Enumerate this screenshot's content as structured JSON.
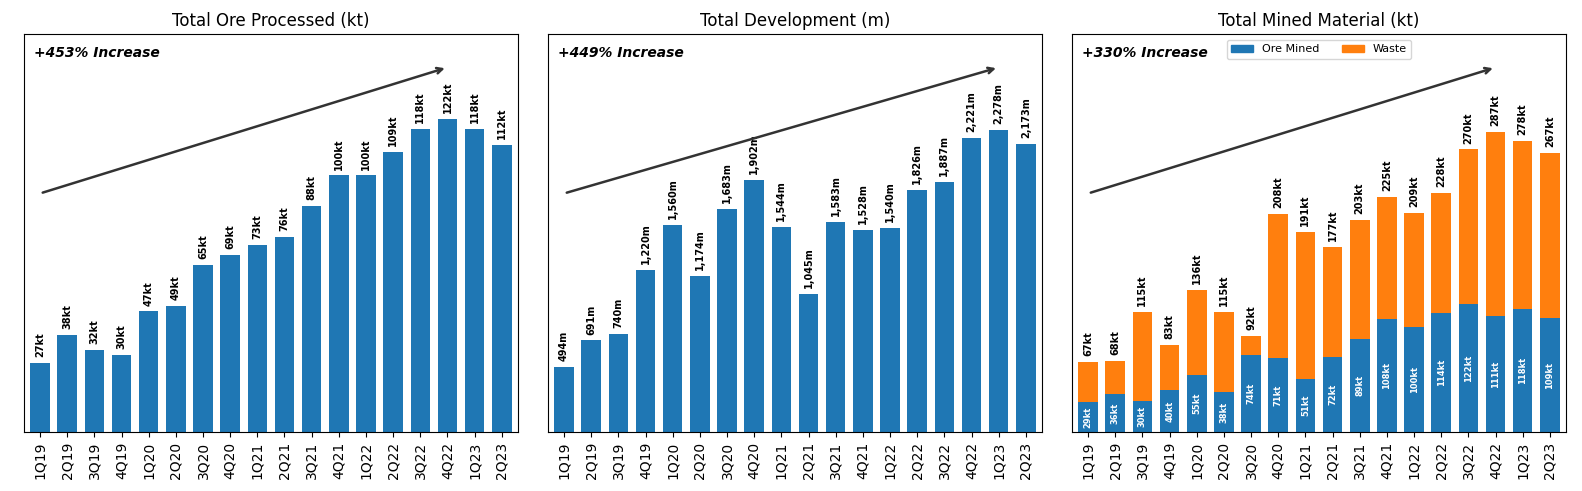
{
  "chart_data": [
    {
      "type": "bar",
      "title": "Total Ore Processed (kt)",
      "categories": [
        "1Q19",
        "2Q19",
        "3Q19",
        "4Q19",
        "1Q20",
        "2Q20",
        "3Q20",
        "4Q20",
        "1Q21",
        "2Q21",
        "3Q21",
        "4Q21",
        "1Q22",
        "2Q22",
        "3Q22",
        "4Q22",
        "1Q23",
        "2Q23"
      ],
      "values": [
        27,
        38,
        32,
        30,
        47,
        49,
        65,
        69,
        73,
        76,
        88,
        100,
        100,
        109,
        118,
        122,
        118,
        112
      ],
      "value_labels": [
        "27kt",
        "38kt",
        "32kt",
        "30kt",
        "47kt",
        "49kt",
        "65kt",
        "69kt",
        "73kt",
        "76kt",
        "88kt",
        "100kt",
        "100kt",
        "109kt",
        "118kt",
        "122kt",
        "118kt",
        "112kt"
      ],
      "data_labels": true,
      "annotation": "+453% Increase",
      "ylim": [
        0,
        155
      ],
      "tick_labels": "x"
    },
    {
      "type": "bar",
      "title": "Total Development (m)",
      "categories": [
        "1Q19",
        "2Q19",
        "3Q19",
        "4Q19",
        "1Q20",
        "2Q20",
        "3Q20",
        "4Q20",
        "1Q21",
        "2Q21",
        "3Q21",
        "4Q21",
        "1Q22",
        "2Q22",
        "3Q22",
        "4Q22",
        "1Q23",
        "2Q23"
      ],
      "values": [
        494,
        691,
        740,
        1220,
        1560,
        1174,
        1683,
        1902,
        1544,
        1045,
        1583,
        1528,
        1540,
        1826,
        1887,
        2221,
        2278,
        2173
      ],
      "value_labels": [
        "494m",
        "691m",
        "740m",
        "1,220m",
        "1,560m",
        "1,174m",
        "1,683m",
        "1,902m",
        "1,544m",
        "1,045m",
        "1,583m",
        "1,528m",
        "1,540m",
        "1,826m",
        "1,887m",
        "2,221m",
        "2,278m",
        "2,173m"
      ],
      "data_labels": true,
      "annotation": "+449% Increase",
      "ylim": [
        0,
        3000
      ],
      "tick_labels": "x"
    },
    {
      "type": "bar",
      "title": "Total Mined Material (kt)",
      "stacked": true,
      "categories": [
        "1Q19",
        "2Q19",
        "3Q19",
        "4Q19",
        "1Q20",
        "2Q20",
        "3Q20",
        "4Q20",
        "1Q21",
        "2Q21",
        "3Q21",
        "4Q21",
        "1Q22",
        "2Q22",
        "3Q22",
        "4Q22",
        "1Q23",
        "2Q23"
      ],
      "series": [
        {
          "name": "Ore Mined",
          "values": [
            29,
            36,
            30,
            40,
            55,
            38,
            74,
            71,
            51,
            72,
            89,
            108,
            100,
            114,
            122,
            111,
            118,
            109
          ],
          "value_labels": [
            "29kt",
            "36kt",
            "30kt",
            "40kt",
            "55kt",
            "38kt",
            "74kt",
            "71kt",
            "51kt",
            "72kt",
            "89kt",
            "108kt",
            "100kt",
            "114kt",
            "122kt",
            "111kt",
            "118kt",
            "109kt"
          ]
        },
        {
          "name": "Waste",
          "values": [
            38,
            32,
            85,
            43,
            81,
            77,
            18,
            137,
            140,
            105,
            114,
            117,
            109,
            114,
            148,
            176,
            160,
            158
          ]
        }
      ],
      "totals": [
        67,
        68,
        115,
        83,
        136,
        115,
        92,
        208,
        191,
        177,
        203,
        225,
        209,
        228,
        270,
        287,
        278,
        267
      ],
      "total_labels": [
        "67kt",
        "68kt",
        "115kt",
        "83kt",
        "136kt",
        "115kt",
        "92kt",
        "208kt",
        "191kt",
        "177kt",
        "203kt",
        "225kt",
        "209kt",
        "228kt",
        "270kt",
        "287kt",
        "278kt",
        "267kt"
      ],
      "data_labels": true,
      "annotation": "+330% Increase",
      "legend": "upper center",
      "ylim": [
        0,
        380
      ],
      "tick_labels": "x"
    }
  ]
}
